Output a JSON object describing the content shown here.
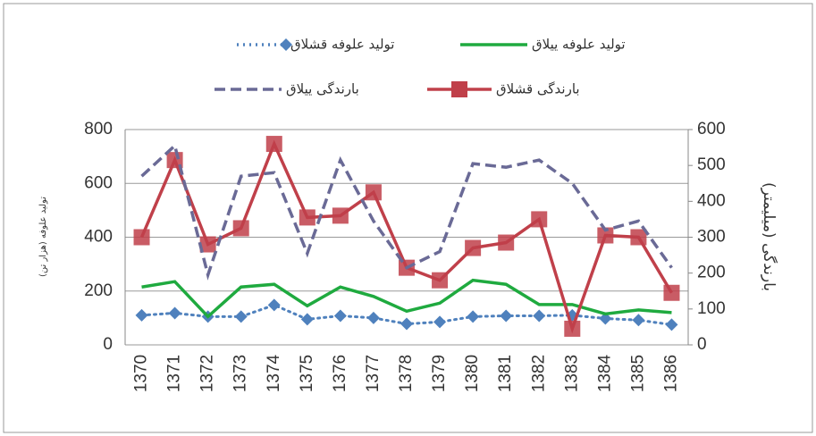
{
  "chart_data": {
    "type": "line",
    "categories": [
      "1370",
      "1371",
      "1372",
      "1373",
      "1374",
      "1375",
      "1376",
      "1377",
      "1378",
      "1379",
      "1380",
      "1381",
      "1382",
      "1383",
      "1384",
      "1385",
      "1386"
    ],
    "y_label": "تولید علوفه (هزار تن)",
    "y2_label": "بارندگی (میلیمتر)",
    "ylim": [
      0,
      800
    ],
    "yticks": [
      0,
      200,
      400,
      600,
      800
    ],
    "y2lim": [
      0,
      600
    ],
    "y2ticks": [
      0,
      100,
      200,
      300,
      400,
      500,
      600
    ],
    "grid": true,
    "series": [
      {
        "name": "تولید علوفه قشلاق",
        "color": "#4f81bd",
        "style": "dotted",
        "marker": "diamond",
        "values": [
          110,
          118,
          105,
          105,
          148,
          95,
          108,
          100,
          78,
          85,
          105,
          108,
          108,
          110,
          98,
          92,
          75
        ]
      },
      {
        "name": "تولید علوفه ییلاق",
        "color": "#1faa3f",
        "style": "solid",
        "marker": "none",
        "values": [
          215,
          235,
          105,
          215,
          225,
          145,
          215,
          180,
          125,
          155,
          240,
          225,
          150,
          150,
          115,
          130,
          120
        ]
      },
      {
        "name": "بارندگی قشلاق",
        "color": "#c0404a",
        "style": "solid",
        "marker": "square",
        "axis": "y2",
        "values": [
          300,
          515,
          280,
          325,
          560,
          355,
          360,
          425,
          215,
          180,
          270,
          285,
          350,
          45,
          305,
          300,
          145
        ]
      },
      {
        "name": "بارندگی ییلاق",
        "color": "#6a6a96",
        "style": "dashed",
        "marker": "none",
        "axis": "y2",
        "values": [
          470,
          555,
          195,
          470,
          480,
          255,
          515,
          345,
          215,
          260,
          505,
          495,
          515,
          450,
          320,
          345,
          215
        ]
      }
    ]
  }
}
